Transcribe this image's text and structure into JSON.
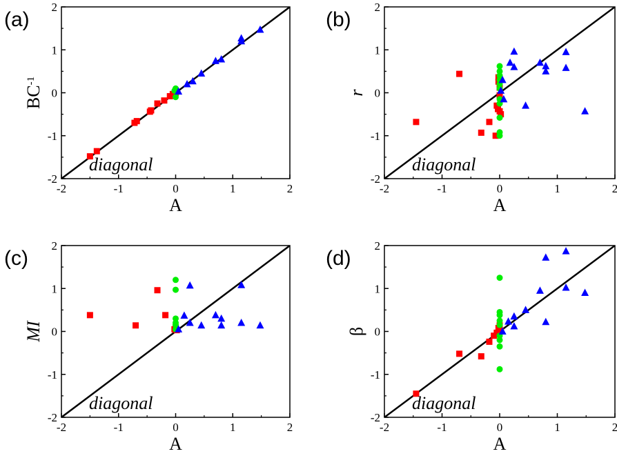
{
  "chart_data": [
    {
      "type": "scatter",
      "panel_label": "(a)",
      "xlabel": "A",
      "ylabel": "BC",
      "ylabel_superscript": "-1",
      "ylabel_italic": false,
      "xlim": [
        -2,
        2
      ],
      "ylim": [
        -2,
        2
      ],
      "xticks": [
        "-2",
        "-1",
        "0",
        "1",
        "2"
      ],
      "yticks": [
        "-2",
        "-1",
        "0",
        "1",
        "2"
      ],
      "diagonal_label": "diagonal",
      "series": [
        {
          "marker": "square",
          "color": "#ff0000",
          "points": [
            [
              -1.5,
              -1.48
            ],
            [
              -1.38,
              -1.36
            ],
            [
              -0.72,
              -0.7
            ],
            [
              -0.68,
              -0.66
            ],
            [
              -0.45,
              -0.44
            ],
            [
              -0.43,
              -0.41
            ],
            [
              -0.32,
              -0.25
            ],
            [
              -0.2,
              -0.18
            ],
            [
              -0.1,
              -0.08
            ],
            [
              -0.05,
              -0.03
            ],
            [
              0.0,
              0.0
            ],
            [
              -0.02,
              -0.06
            ]
          ]
        },
        {
          "marker": "circle",
          "color": "#00ee00",
          "points": [
            [
              0.0,
              0.1
            ],
            [
              0.0,
              -0.1
            ],
            [
              -0.02,
              0.05
            ],
            [
              0.02,
              0.02
            ]
          ]
        },
        {
          "marker": "triangle",
          "color": "#0000ff",
          "points": [
            [
              0.05,
              0.03
            ],
            [
              0.2,
              0.2
            ],
            [
              0.3,
              0.27
            ],
            [
              0.45,
              0.45
            ],
            [
              0.7,
              0.74
            ],
            [
              0.8,
              0.78
            ],
            [
              1.15,
              1.2
            ],
            [
              1.15,
              1.27
            ],
            [
              1.48,
              1.47
            ]
          ]
        }
      ]
    },
    {
      "type": "scatter",
      "panel_label": "(b)",
      "xlabel": "A",
      "ylabel": "r",
      "ylabel_superscript": "",
      "ylabel_italic": true,
      "xlim": [
        -2,
        2
      ],
      "ylim": [
        -2,
        2
      ],
      "xticks": [
        "-2",
        "-1",
        "0",
        "1",
        "2"
      ],
      "yticks": [
        "-2",
        "-1",
        "0",
        "1",
        "2"
      ],
      "diagonal_label": "diagonal",
      "series": [
        {
          "marker": "square",
          "color": "#ff0000",
          "points": [
            [
              -1.45,
              -0.68
            ],
            [
              -0.7,
              0.44
            ],
            [
              -0.32,
              -0.93
            ],
            [
              -0.18,
              -0.68
            ],
            [
              -0.07,
              -1.0
            ],
            [
              -0.05,
              -0.3
            ],
            [
              -0.03,
              -0.38
            ],
            [
              -0.02,
              0.36
            ],
            [
              0.0,
              0.12
            ],
            [
              0.0,
              -0.06
            ],
            [
              0.0,
              -0.43
            ],
            [
              0.02,
              -0.5
            ],
            [
              -0.02,
              0.26
            ]
          ]
        },
        {
          "marker": "circle",
          "color": "#00ee00",
          "points": [
            [
              0.0,
              0.62
            ],
            [
              0.0,
              0.5
            ],
            [
              0.0,
              0.4
            ],
            [
              0.0,
              0.3
            ],
            [
              0.0,
              0.2
            ],
            [
              0.0,
              0.1
            ],
            [
              0.0,
              -0.15
            ],
            [
              0.0,
              -0.25
            ],
            [
              0.0,
              -0.58
            ],
            [
              0.0,
              -0.92
            ],
            [
              0.0,
              -1.0
            ]
          ]
        },
        {
          "marker": "triangle",
          "color": "#0000ff",
          "points": [
            [
              0.02,
              0.05
            ],
            [
              0.05,
              0.3
            ],
            [
              0.07,
              -0.15
            ],
            [
              0.18,
              0.7
            ],
            [
              0.25,
              0.6
            ],
            [
              0.25,
              0.96
            ],
            [
              0.45,
              -0.3
            ],
            [
              0.7,
              0.7
            ],
            [
              0.8,
              0.5
            ],
            [
              0.8,
              0.62
            ],
            [
              1.15,
              0.95
            ],
            [
              1.15,
              0.58
            ],
            [
              1.48,
              -0.43
            ]
          ]
        }
      ]
    },
    {
      "type": "scatter",
      "panel_label": "(c)",
      "xlabel": "A",
      "ylabel": "MI",
      "ylabel_superscript": "",
      "ylabel_italic": true,
      "xlim": [
        -2,
        2
      ],
      "ylim": [
        -2,
        2
      ],
      "xticks": [
        "-2",
        "-1",
        "0",
        "1",
        "2"
      ],
      "yticks": [
        "-2",
        "-1",
        "0",
        "1",
        "2"
      ],
      "diagonal_label": "diagonal",
      "series": [
        {
          "marker": "square",
          "color": "#ff0000",
          "points": [
            [
              -1.5,
              0.38
            ],
            [
              -0.7,
              0.14
            ],
            [
              -0.32,
              0.96
            ],
            [
              -0.18,
              0.38
            ],
            [
              -0.02,
              0.05
            ],
            [
              0.0,
              0.1
            ],
            [
              0.02,
              0.03
            ]
          ]
        },
        {
          "marker": "circle",
          "color": "#00ee00",
          "points": [
            [
              0.0,
              1.2
            ],
            [
              0.0,
              0.97
            ],
            [
              0.0,
              0.3
            ],
            [
              0.0,
              0.2
            ],
            [
              0.0,
              0.15
            ],
            [
              0.0,
              0.05
            ]
          ]
        },
        {
          "marker": "triangle",
          "color": "#0000ff",
          "points": [
            [
              0.05,
              0.05
            ],
            [
              0.15,
              0.37
            ],
            [
              0.25,
              1.07
            ],
            [
              0.25,
              0.2
            ],
            [
              0.45,
              0.14
            ],
            [
              0.7,
              0.38
            ],
            [
              0.8,
              0.14
            ],
            [
              0.8,
              0.3
            ],
            [
              1.15,
              1.08
            ],
            [
              1.15,
              0.2
            ],
            [
              1.48,
              0.14
            ]
          ]
        }
      ]
    },
    {
      "type": "scatter",
      "panel_label": "(d)",
      "xlabel": "A",
      "ylabel": "β",
      "ylabel_superscript": "",
      "ylabel_italic": false,
      "xlim": [
        -2,
        2
      ],
      "ylim": [
        -2,
        2
      ],
      "xticks": [
        "-2",
        "-1",
        "0",
        "1",
        "2"
      ],
      "yticks": [
        "-2",
        "-1",
        "0",
        "1",
        "2"
      ],
      "diagonal_label": "diagonal",
      "series": [
        {
          "marker": "square",
          "color": "#ff0000",
          "points": [
            [
              -1.45,
              -1.45
            ],
            [
              -0.7,
              -0.52
            ],
            [
              -0.32,
              -0.58
            ],
            [
              -0.18,
              -0.24
            ],
            [
              -0.1,
              -0.1
            ],
            [
              -0.05,
              -0.03
            ],
            [
              -0.02,
              0.08
            ],
            [
              0.0,
              0.14
            ],
            [
              0.02,
              0.0
            ]
          ]
        },
        {
          "marker": "circle",
          "color": "#00ee00",
          "points": [
            [
              0.0,
              1.25
            ],
            [
              0.0,
              0.45
            ],
            [
              0.0,
              0.38
            ],
            [
              0.0,
              0.25
            ],
            [
              0.0,
              0.15
            ],
            [
              0.0,
              -0.1
            ],
            [
              0.0,
              -0.2
            ],
            [
              0.0,
              -0.35
            ],
            [
              0.0,
              -0.88
            ]
          ]
        },
        {
          "marker": "triangle",
          "color": "#0000ff",
          "points": [
            [
              0.05,
              0.0
            ],
            [
              0.15,
              0.23
            ],
            [
              0.25,
              0.12
            ],
            [
              0.25,
              0.35
            ],
            [
              0.45,
              0.5
            ],
            [
              0.7,
              0.95
            ],
            [
              0.8,
              1.72
            ],
            [
              0.8,
              0.22
            ],
            [
              1.15,
              1.87
            ],
            [
              1.15,
              1.02
            ],
            [
              1.48,
              0.9
            ]
          ]
        }
      ]
    }
  ]
}
